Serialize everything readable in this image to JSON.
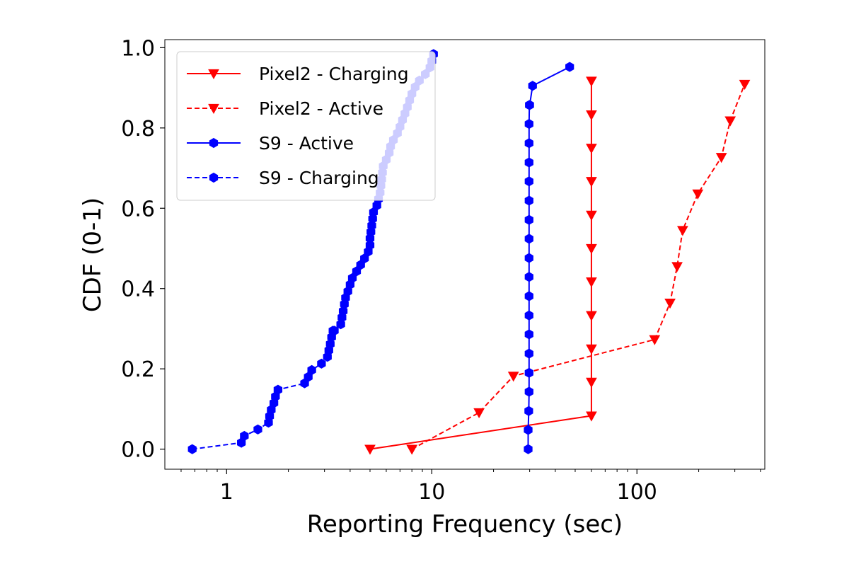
{
  "chart_data": {
    "type": "line",
    "title": "",
    "xlabel": "Reporting Frequency (sec)",
    "ylabel": "CDF (0-1)",
    "xscale": "log",
    "xlim": [
      0.5,
      420
    ],
    "ylim": [
      -0.05,
      1.02
    ],
    "xticks": [
      {
        "value": 1,
        "label": "1"
      },
      {
        "value": 10,
        "label": "10"
      },
      {
        "value": 100,
        "label": "100"
      }
    ],
    "yticks": [
      {
        "value": 0.0,
        "label": "0.0"
      },
      {
        "value": 0.2,
        "label": "0.2"
      },
      {
        "value": 0.4,
        "label": "0.4"
      },
      {
        "value": 0.6,
        "label": "0.6"
      },
      {
        "value": 0.8,
        "label": "0.8"
      },
      {
        "value": 1.0,
        "label": "1.0"
      }
    ],
    "grid": false,
    "legend_position": "top-left",
    "series": [
      {
        "name": "Pixel2 - Charging",
        "color": "#ff0000",
        "linestyle": "solid",
        "marker": "triangle-down",
        "x": [
          5,
          60,
          60,
          60,
          60,
          60,
          60,
          60,
          60,
          60,
          60,
          60
        ],
        "y": [
          0.0,
          0.083,
          0.167,
          0.25,
          0.333,
          0.417,
          0.5,
          0.583,
          0.667,
          0.75,
          0.833,
          0.917
        ]
      },
      {
        "name": "Pixel2 - Active",
        "color": "#ff0000",
        "linestyle": "dashed",
        "marker": "triangle-down",
        "x": [
          8,
          17,
          25,
          122,
          145,
          157,
          167,
          198,
          258,
          285,
          335
        ],
        "y": [
          0.0,
          0.091,
          0.182,
          0.273,
          0.364,
          0.455,
          0.545,
          0.636,
          0.727,
          0.818,
          0.909
        ]
      },
      {
        "name": "S9 - Active",
        "color": "#0000ff",
        "linestyle": "solid",
        "marker": "hexagon",
        "x": [
          29.5,
          29.5,
          29.7,
          29.8,
          29.8,
          29.8,
          29.8,
          29.8,
          29.8,
          29.8,
          29.8,
          29.8,
          29.8,
          29.8,
          29.8,
          29.8,
          29.8,
          29.8,
          29.9,
          30,
          31,
          47
        ],
        "y": [
          0.0,
          0.048,
          0.095,
          0.143,
          0.19,
          0.238,
          0.286,
          0.333,
          0.381,
          0.429,
          0.476,
          0.524,
          0.571,
          0.619,
          0.667,
          0.714,
          0.762,
          0.81,
          0.857,
          0.857,
          0.905,
          0.952
        ]
      },
      {
        "name": "S9 - Charging",
        "color": "#0000ff",
        "linestyle": "dashed",
        "marker": "hexagon",
        "x": [
          0.68,
          1.18,
          1.22,
          1.42,
          1.6,
          1.62,
          1.65,
          1.7,
          1.73,
          1.78,
          2.4,
          2.5,
          2.6,
          2.9,
          3.1,
          3.15,
          3.2,
          3.25,
          3.3,
          3.35,
          3.6,
          3.65,
          3.7,
          3.75,
          3.8,
          3.9,
          4.0,
          4.1,
          4.3,
          4.5,
          4.7,
          4.9,
          5.0,
          5.0,
          5.05,
          5.1,
          5.15,
          5.2,
          5.4,
          5.5,
          5.6,
          5.65,
          5.7,
          5.75,
          5.8,
          6.0,
          6.2,
          6.3,
          6.5,
          6.8,
          7.0,
          7.2,
          7.4,
          7.6,
          7.8,
          8.0,
          8.3,
          8.7,
          9.3,
          9.8,
          10.0,
          10.2
        ],
        "y": [
          0.0,
          0.016,
          0.033,
          0.049,
          0.066,
          0.082,
          0.098,
          0.115,
          0.131,
          0.148,
          0.164,
          0.18,
          0.197,
          0.213,
          0.23,
          0.246,
          0.262,
          0.279,
          0.295,
          0.295,
          0.311,
          0.328,
          0.344,
          0.361,
          0.377,
          0.393,
          0.41,
          0.426,
          0.443,
          0.459,
          0.475,
          0.492,
          0.508,
          0.525,
          0.541,
          0.557,
          0.574,
          0.59,
          0.607,
          0.623,
          0.639,
          0.656,
          0.672,
          0.689,
          0.705,
          0.721,
          0.738,
          0.754,
          0.77,
          0.787,
          0.803,
          0.82,
          0.836,
          0.852,
          0.869,
          0.885,
          0.902,
          0.918,
          0.934,
          0.951,
          0.967,
          0.984
        ]
      }
    ]
  }
}
